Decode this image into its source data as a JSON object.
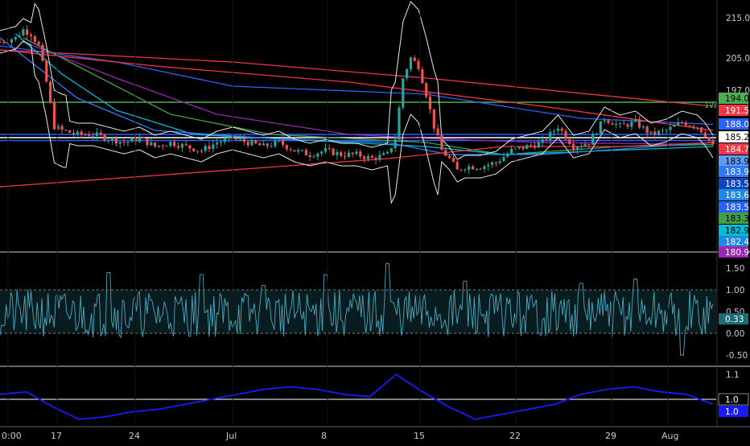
{
  "chart_data": [
    {
      "type": "candlestick",
      "panel": "price",
      "x_tick_labels": [
        "0:00",
        "17",
        "24",
        "Jul",
        "8",
        "15",
        "22",
        "29",
        "Aug"
      ],
      "y_tick_labels": [
        "215.0",
        "205.0",
        "197.0"
      ],
      "annotation": "1W",
      "horizontal_lines": [
        {
          "value": 194.0,
          "color": "#4caf50"
        },
        {
          "value": 186.0,
          "color": "#2962ff"
        },
        {
          "value": 185.2,
          "color": "#ffffff"
        },
        {
          "value": 184.5,
          "color": "#2962ff"
        }
      ],
      "close_approx": [
        [
          0,
          209
        ],
        [
          2,
          210
        ],
        [
          3,
          212
        ],
        [
          4,
          211
        ],
        [
          5,
          208
        ],
        [
          6,
          199
        ],
        [
          7,
          188
        ],
        [
          8,
          187
        ],
        [
          10,
          186
        ],
        [
          12,
          186
        ],
        [
          14,
          185
        ],
        [
          16,
          184
        ],
        [
          18,
          185
        ],
        [
          20,
          183
        ],
        [
          22,
          184
        ],
        [
          24,
          183
        ],
        [
          26,
          182
        ],
        [
          28,
          184
        ],
        [
          30,
          185
        ],
        [
          32,
          184
        ],
        [
          34,
          183
        ],
        [
          36,
          184
        ],
        [
          38,
          182
        ],
        [
          40,
          181
        ],
        [
          42,
          182
        ],
        [
          44,
          181
        ],
        [
          46,
          181
        ],
        [
          48,
          180
        ],
        [
          50,
          181
        ],
        [
          51,
          185
        ],
        [
          52,
          200
        ],
        [
          53,
          205
        ],
        [
          54,
          203
        ],
        [
          55,
          196
        ],
        [
          56,
          188
        ],
        [
          57,
          182
        ],
        [
          58,
          180
        ],
        [
          59,
          177
        ],
        [
          60,
          178
        ],
        [
          62,
          178
        ],
        [
          64,
          179
        ],
        [
          66,
          182
        ],
        [
          68,
          183
        ],
        [
          70,
          184
        ],
        [
          72,
          188
        ],
        [
          74,
          183
        ],
        [
          76,
          184
        ],
        [
          78,
          190
        ],
        [
          80,
          188
        ],
        [
          82,
          189
        ],
        [
          84,
          186
        ],
        [
          86,
          187
        ],
        [
          88,
          189
        ],
        [
          90,
          188
        ],
        [
          91,
          186
        ],
        [
          92,
          183
        ]
      ],
      "price_labels": [
        {
          "text": "194.0",
          "bg": "#4caf50",
          "fg": "#000000"
        },
        {
          "text": "191.5",
          "bg": "#f23645",
          "fg": "#ffffff"
        },
        {
          "text": "188.0",
          "bg": "#2962ff",
          "fg": "#ffffff"
        },
        {
          "text": "185.2",
          "bg": "#ffffff",
          "fg": "#000000"
        },
        {
          "text": "184.7",
          "bg": "#f23645",
          "fg": "#ffffff"
        },
        {
          "text": "183.9",
          "bg": "#5b9cf6",
          "fg": "#000000"
        },
        {
          "text": "183.9",
          "bg": "#3179f5",
          "fg": "#ffffff"
        },
        {
          "text": "183.5",
          "bg": "#0d47c1",
          "fg": "#ffffff"
        },
        {
          "text": "183.6",
          "bg": "#1e88e5",
          "fg": "#ffffff"
        },
        {
          "text": "183.5",
          "bg": "#2962ff",
          "fg": "#ffffff"
        },
        {
          "text": "183.3",
          "bg": "#43a047",
          "fg": "#000000"
        },
        {
          "text": "182.9",
          "bg": "#00bcd4",
          "fg": "#000000"
        },
        {
          "text": "182.4",
          "bg": "#1e88e5",
          "fg": "#ffffff"
        },
        {
          "text": "180.9",
          "bg": "#9c27b0",
          "fg": "#ffffff"
        }
      ]
    },
    {
      "type": "line",
      "panel": "oscillator",
      "y_tick_labels": [
        "1.50",
        "1.00",
        "0.50",
        "0.00",
        "-0.50"
      ],
      "ylim": [
        -0.7,
        1.7
      ],
      "band": [
        0.0,
        1.0
      ],
      "last_value": "0.33",
      "series_color": "#4aa8c0"
    },
    {
      "type": "line",
      "panel": "indicator",
      "y_tick_labels": [
        "1.1"
      ],
      "reference_line": {
        "value": 1.0,
        "color": "#ffffff"
      },
      "last_value_labels": [
        {
          "text": "1.0",
          "bg": "#000000",
          "fg": "#ffffff"
        },
        {
          "text": "1.0",
          "bg": "#1a1aff",
          "fg": "#ffffff"
        }
      ],
      "series_color": "#1a1aff",
      "values_approx": [
        1.02,
        1.03,
        0.97,
        0.92,
        0.93,
        0.95,
        0.96,
        0.98,
        1.0,
        1.02,
        1.04,
        1.05,
        1.04,
        1.02,
        1.01,
        1.1,
        1.03,
        0.97,
        0.92,
        0.94,
        0.96,
        0.98,
        1.02,
        1.04,
        1.05,
        1.03,
        1.02,
        0.98
      ]
    }
  ]
}
